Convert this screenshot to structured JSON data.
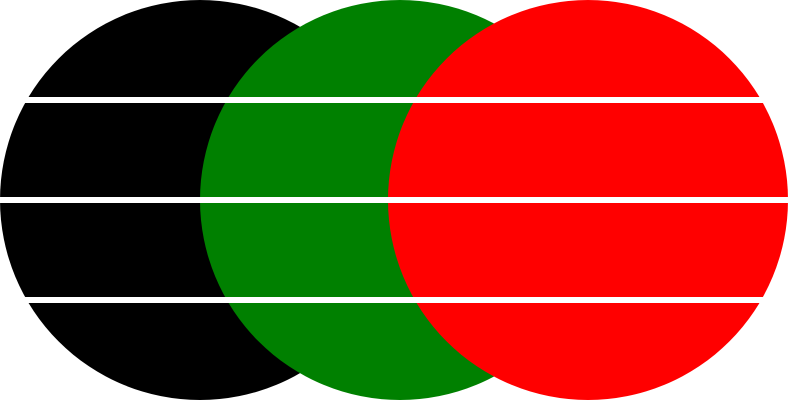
{
  "shapes": {
    "circles": [
      {
        "name": "black-circle",
        "color": "#000000"
      },
      {
        "name": "green-circle",
        "color": "#008000"
      },
      {
        "name": "red-circle",
        "color": "#ff0000"
      }
    ],
    "stripe_color": "#ffffff",
    "stripe_count": 3
  }
}
